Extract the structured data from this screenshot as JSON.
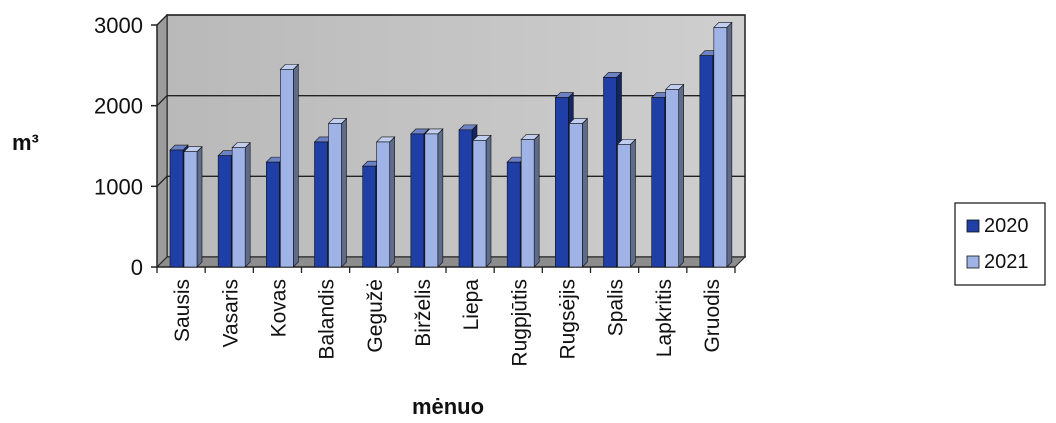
{
  "chart_data": {
    "type": "bar",
    "title": "",
    "xlabel": "mėnuo",
    "ylabel": "m³",
    "ylim": [
      0,
      3000
    ],
    "yticks": [
      0,
      1000,
      2000,
      3000
    ],
    "grid": true,
    "legend_position": "right",
    "categories": [
      "Sausis",
      "Vasaris",
      "Kovas",
      "Balandis",
      "Gegužė",
      "Birželis",
      "Liepa",
      "Rugpjūtis",
      "Rugsėjis",
      "Spalis",
      "Lapkritis",
      "Gruodis"
    ],
    "series": [
      {
        "name": "2020",
        "color": "#1f3fa6",
        "values": [
          1450,
          1380,
          1300,
          1550,
          1250,
          1650,
          1700,
          1300,
          2100,
          2350,
          2100,
          2620
        ]
      },
      {
        "name": "2021",
        "color": "#9fb3e6",
        "values": [
          1430,
          1480,
          2450,
          1780,
          1550,
          1650,
          1570,
          1580,
          1780,
          1520,
          2200,
          2970
        ]
      }
    ]
  }
}
